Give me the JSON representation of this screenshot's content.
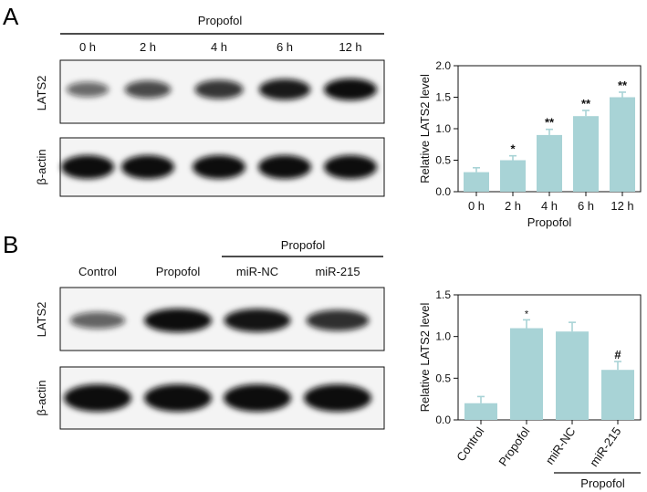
{
  "panel_a": {
    "letter": "A",
    "treatment_label": "Propofol",
    "lanes": [
      "0 h",
      "2 h",
      "4 h",
      "6 h",
      "12 h"
    ],
    "blot_rows": [
      "LATS2",
      "β-actin"
    ],
    "lats2_band_intensity": [
      0.3,
      0.55,
      0.7,
      0.9,
      1.0
    ],
    "actin_band_intensity": [
      1.0,
      1.0,
      1.0,
      1.0,
      1.0
    ]
  },
  "panel_b": {
    "letter": "B",
    "treatment_label": "Propofol",
    "lanes": [
      "Control",
      "Propofol",
      "miR-NC",
      "miR-215"
    ],
    "blot_rows": [
      "LATS2",
      "β-actin"
    ],
    "lats2_band_intensity": [
      0.35,
      1.0,
      0.95,
      0.75
    ],
    "actin_band_intensity": [
      1.0,
      1.0,
      1.0,
      1.0
    ]
  },
  "chart_data": [
    {
      "type": "bar",
      "categories": [
        "0 h",
        "2 h",
        "4 h",
        "6 h",
        "12 h"
      ],
      "values": [
        0.31,
        0.5,
        0.9,
        1.2,
        1.5
      ],
      "errors": [
        0.07,
        0.07,
        0.09,
        0.09,
        0.08
      ],
      "significance": [
        "",
        "*",
        "**",
        "**",
        "**"
      ],
      "ylabel": "Relative LATS2 level",
      "xlabel": "Propofol",
      "ylim": [
        0,
        2.0
      ],
      "yticks": [
        0.0,
        0.5,
        1.0,
        1.5,
        2.0
      ],
      "ytick_labels": [
        "0.0",
        "0.5",
        "1.0",
        "1.5",
        "2.0"
      ],
      "bar_color": "#a8d3d6"
    },
    {
      "type": "bar",
      "categories": [
        "Control",
        "Propofol",
        "miR-NC",
        "miR-215"
      ],
      "values": [
        0.2,
        1.1,
        1.06,
        0.6
      ],
      "errors": [
        0.08,
        0.1,
        0.11,
        0.1
      ],
      "significance": [
        "",
        "*",
        "",
        "#"
      ],
      "ylabel": "Relative LATS2 level",
      "bracket_label": "Propofol",
      "ylim": [
        0,
        1.5
      ],
      "yticks": [
        0.0,
        0.5,
        1.0,
        1.5
      ],
      "ytick_labels": [
        "0.0",
        "0.5",
        "1.0",
        "1.5"
      ],
      "bar_color": "#a8d3d6"
    }
  ]
}
